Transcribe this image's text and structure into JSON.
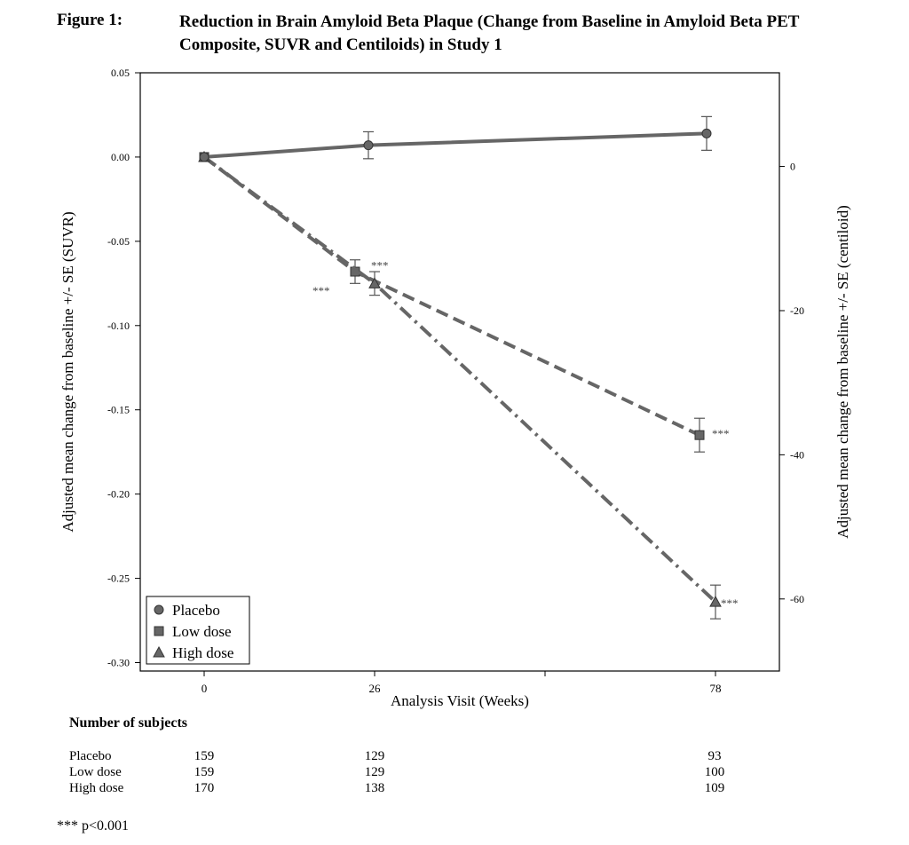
{
  "figure": {
    "label": "Figure 1:",
    "title": "Reduction in Brain Amyloid Beta Plaque (Change from Baseline in Amyloid Beta PET Composite, SUVR and Centiloids) in Study 1"
  },
  "chart_data": {
    "type": "line",
    "xlabel": "Analysis Visit (Weeks)",
    "ylabel": "Adjusted mean change from baseline +/- SE (SUVR)",
    "y2label": "Adjusted mean change from baseline +/- SE (centiloid)",
    "x_ticks": [
      0,
      26,
      78
    ],
    "y_ticks": [
      "0.05",
      "0.00",
      "-0.05",
      "-0.10",
      "-0.15",
      "-0.20",
      "-0.25",
      "-0.30"
    ],
    "y2_ticks": [
      "0",
      "-20",
      "-40",
      "-60"
    ],
    "ylim": [
      -0.305,
      0.05
    ],
    "y2lim": [
      -70,
      13
    ],
    "legend_position": "bottom-left",
    "significance_marker": "***",
    "series": [
      {
        "name": "Placebo",
        "marker": "circle",
        "dash": "solid",
        "color": "#666666",
        "points": [
          {
            "x": 0,
            "y": 0.0,
            "se": 0
          },
          {
            "x": 26,
            "y": 0.007,
            "se": 0.008
          },
          {
            "x": 78,
            "y": 0.014,
            "se": 0.01
          }
        ]
      },
      {
        "name": "Low dose",
        "marker": "square",
        "dash": "dash",
        "color": "#666666",
        "points": [
          {
            "x": 0,
            "y": 0.0,
            "se": 0
          },
          {
            "x": 26,
            "y": -0.068,
            "se": 0.007,
            "sig": true
          },
          {
            "x": 78,
            "y": -0.165,
            "se": 0.01,
            "sig": true
          }
        ]
      },
      {
        "name": "High dose",
        "marker": "triangle",
        "dash": "dashdot",
        "color": "#666666",
        "points": [
          {
            "x": 0,
            "y": 0.0,
            "se": 0
          },
          {
            "x": 26,
            "y": -0.075,
            "se": 0.007,
            "sig": true
          },
          {
            "x": 78,
            "y": -0.264,
            "se": 0.01,
            "sig": true
          }
        ]
      }
    ]
  },
  "subjects": {
    "heading": "Number of subjects",
    "rows": [
      {
        "name": "Placebo",
        "values": [
          "159",
          "129",
          "93"
        ]
      },
      {
        "name": "Low dose",
        "values": [
          "159",
          "129",
          "100"
        ]
      },
      {
        "name": "High dose",
        "values": [
          "170",
          "138",
          "109"
        ]
      }
    ]
  },
  "footnote": "*** p<0.001"
}
